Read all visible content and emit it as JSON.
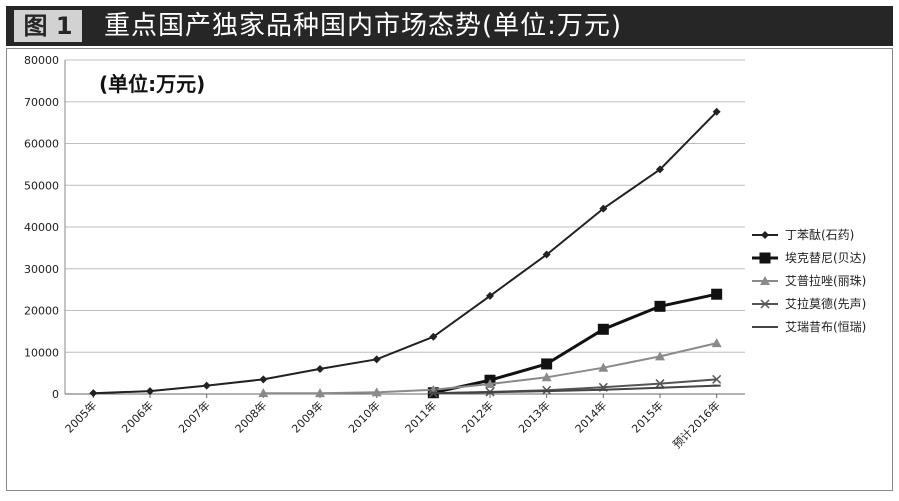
{
  "header": {
    "badge": "图 1",
    "title": "重点国产独家品种国内市场态势(单位:万元)"
  },
  "chart_data": {
    "type": "line",
    "unit_note": "(单位:万元)",
    "categories": [
      "2005年",
      "2006年",
      "2007年",
      "2008年",
      "2009年",
      "2010年",
      "2011年",
      "2012年",
      "2013年",
      "2014年",
      "2015年",
      "预计2016年"
    ],
    "ylim": [
      0,
      80000
    ],
    "yticks": [
      0,
      10000,
      20000,
      30000,
      40000,
      50000,
      60000,
      70000,
      80000
    ],
    "grid": true,
    "legend_position": "right",
    "series": [
      {
        "name": "丁苯酞(石药)",
        "marker": "diamond",
        "color": "#222222",
        "width": 2,
        "values": [
          200,
          700,
          2000,
          3500,
          6000,
          8300,
          13700,
          23500,
          33400,
          44400,
          53800,
          67600
        ]
      },
      {
        "name": "埃克替尼(贝达)",
        "marker": "square",
        "color": "#111111",
        "width": 3,
        "values": [
          null,
          null,
          null,
          null,
          null,
          null,
          300,
          3300,
          7200,
          15500,
          21000,
          23900
        ]
      },
      {
        "name": "艾普拉唑(丽珠)",
        "marker": "triangle",
        "color": "#8a8a8a",
        "width": 2,
        "values": [
          null,
          null,
          null,
          200,
          200,
          400,
          1000,
          2400,
          4000,
          6300,
          9000,
          12200
        ]
      },
      {
        "name": "艾拉莫德(先声)",
        "marker": "x",
        "color": "#555555",
        "width": 2,
        "values": [
          null,
          null,
          null,
          null,
          null,
          null,
          200,
          500,
          900,
          1600,
          2500,
          3500
        ]
      },
      {
        "name": "艾瑞昔布(恒瑞)",
        "marker": "dash",
        "color": "#444444",
        "width": 2,
        "values": [
          null,
          null,
          null,
          null,
          null,
          null,
          200,
          400,
          700,
          1000,
          1500,
          2000
        ]
      }
    ]
  }
}
